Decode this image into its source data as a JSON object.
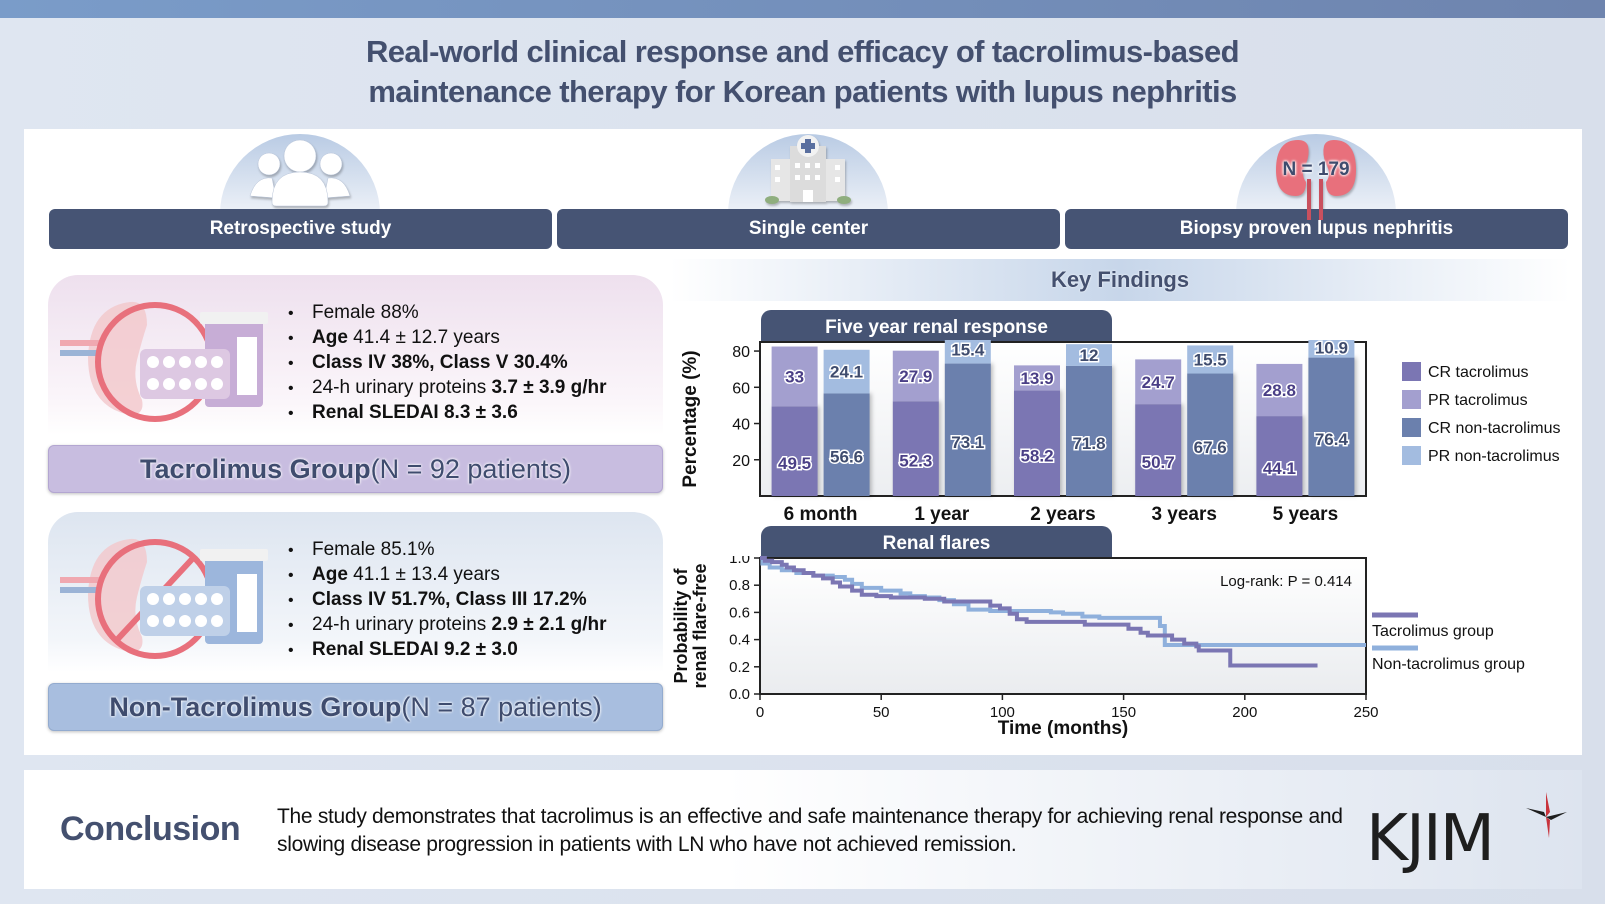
{
  "title": {
    "line1": "Real-world clinical response and efficacy of tacrolimus-based",
    "line2": "maintenance therapy for Korean patients with lupus nephritis"
  },
  "study_design": [
    {
      "label": "Retrospective study",
      "icon": "people-group-icon"
    },
    {
      "label": "Single center",
      "icon": "hospital-icon"
    },
    {
      "label": "Biopsy proven lupus nephritis",
      "icon": "kidneys-icon",
      "badge": "N = 179"
    }
  ],
  "groups": {
    "tacrolimus": {
      "accent": "#c8bde0",
      "bullets": [
        {
          "bold": "",
          "text": "Female 88%"
        },
        {
          "bold": "Age",
          "text": " 41.4 ± 12.7 years"
        },
        {
          "bold": "Class IV 38%, Class V 30.4%",
          "text": ""
        },
        {
          "bold": "",
          "text": "24-h urinary proteins ",
          "bold2": "3.7 ± 3.9 g/hr"
        },
        {
          "bold": "Renal SLEDAI 8.3 ± 3.6",
          "text": ""
        }
      ],
      "banner_bold": "Tacrolimus Group",
      "banner_rest": " (N = 92 patients)"
    },
    "non_tacrolimus": {
      "accent": "#a8bedf",
      "bullets": [
        {
          "bold": "",
          "text": "Female 85.1%"
        },
        {
          "bold": "Age",
          "text": " 41.1 ± 13.4 years"
        },
        {
          "bold": "Class IV 51.7%, Class III 17.2%",
          "text": ""
        },
        {
          "bold": "",
          "text": "24-h urinary proteins ",
          "bold2": "2.9 ± 2.1 g/hr"
        },
        {
          "bold": "Renal SLEDAI 9.2 ± 3.0",
          "text": ""
        }
      ],
      "banner_bold": "Non-Tacrolimus Group",
      "banner_rest": " (N = 87 patients)"
    }
  },
  "key_findings": {
    "heading": "Key Findings"
  },
  "chart_data": [
    {
      "type": "bar",
      "title": "Five year renal response",
      "xlabel": "",
      "ylabel": "Percentage (%)",
      "ylim": [
        0,
        85
      ],
      "yticks": [
        20,
        40,
        60,
        80
      ],
      "stacked": true,
      "categories": [
        "6 month",
        "1 year",
        "2 years",
        "3 years",
        "5 years"
      ],
      "series": [
        {
          "name": "CR tacrolimus",
          "group": "tacrolimus",
          "color": "#7b76b3",
          "values": [
            49.5,
            52.3,
            58.2,
            50.7,
            44.1
          ]
        },
        {
          "name": "PR tacrolimus",
          "group": "tacrolimus",
          "color": "#a39fcf",
          "values": [
            33,
            27.9,
            13.9,
            24.7,
            28.8
          ]
        },
        {
          "name": "CR non-tacrolimus",
          "group": "non-tacrolimus",
          "color": "#6b80ad",
          "values": [
            56.6,
            73.1,
            71.8,
            67.6,
            76.4
          ]
        },
        {
          "name": "PR non-tacrolimus",
          "group": "non-tacrolimus",
          "color": "#a3bce0",
          "values": [
            24.1,
            15.4,
            12,
            15.5,
            10.9
          ]
        }
      ],
      "legend": "right"
    },
    {
      "type": "line",
      "title": "Renal flares",
      "xlabel": "Time (months)",
      "ylabel": "Probability of renal flare-free",
      "xlim": [
        0,
        250
      ],
      "ylim": [
        0,
        1.0
      ],
      "xticks": [
        0,
        50,
        100,
        150,
        200,
        250
      ],
      "yticks": [
        "0.0",
        "0.2",
        "0.4",
        "0.6",
        "0.8",
        "1.0"
      ],
      "annotation": "Log-rank: P = 0.414",
      "legend": "right",
      "series": [
        {
          "name": "Tacrolimus group",
          "color": "#7b76b3",
          "x": [
            0,
            2,
            5,
            9,
            11,
            14,
            18,
            22,
            26,
            30,
            33,
            38,
            42,
            48,
            54,
            60,
            68,
            76,
            84,
            92,
            95,
            99,
            103,
            106,
            110,
            118,
            134,
            141,
            152,
            157,
            160,
            170,
            175,
            180,
            181,
            194,
            230
          ],
          "y": [
            1.0,
            0.98,
            0.97,
            0.95,
            0.93,
            0.91,
            0.89,
            0.87,
            0.85,
            0.82,
            0.79,
            0.76,
            0.73,
            0.72,
            0.71,
            0.71,
            0.7,
            0.68,
            0.68,
            0.68,
            0.65,
            0.63,
            0.59,
            0.55,
            0.53,
            0.53,
            0.51,
            0.51,
            0.48,
            0.45,
            0.43,
            0.4,
            0.37,
            0.35,
            0.32,
            0.21,
            0.21
          ]
        },
        {
          "name": "Non-tacrolimus group",
          "color": "#8fb0dc",
          "x": [
            0,
            1,
            4,
            9,
            15,
            22,
            30,
            35,
            38,
            42,
            50,
            58,
            62,
            68,
            74,
            80,
            86,
            95,
            100,
            120,
            125,
            133,
            140,
            163,
            165,
            167,
            250
          ],
          "y": [
            1.0,
            0.96,
            0.93,
            0.91,
            0.89,
            0.87,
            0.86,
            0.84,
            0.81,
            0.78,
            0.76,
            0.74,
            0.72,
            0.71,
            0.69,
            0.66,
            0.62,
            0.61,
            0.61,
            0.6,
            0.59,
            0.57,
            0.56,
            0.56,
            0.5,
            0.36,
            0.36
          ]
        }
      ]
    }
  ],
  "conclusion": {
    "label": "Conclusion",
    "text": "The study demonstrates that tacrolimus is an effective and safe maintenance therapy for achieving renal response and slowing disease progression in patients with LN who have not achieved remission."
  },
  "logo": {
    "text": "KJIM",
    "accent": "#c8333c"
  }
}
